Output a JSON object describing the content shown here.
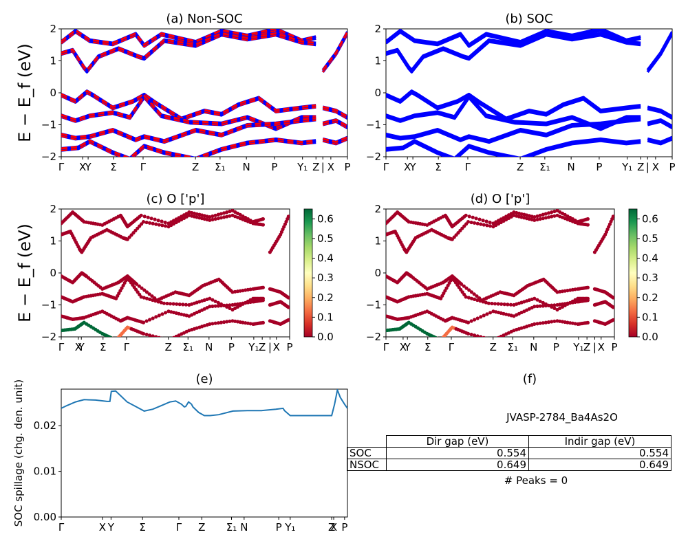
{
  "chart_data": [
    {
      "panel": "a",
      "type": "line",
      "title": "(a) Non-SOC",
      "ylabel": "E − E_f (eV)",
      "ylim": [
        -2,
        2
      ],
      "yticks": [
        "2",
        "1",
        "0",
        "−1",
        "−2"
      ],
      "xticks": [
        {
          "label": "Γ",
          "pos": 0
        },
        {
          "label": "X",
          "pos": 0.075
        },
        {
          "label": "Y",
          "pos": 0.094
        },
        {
          "label": "Σ",
          "pos": 0.183
        },
        {
          "label": "Γ",
          "pos": 0.286
        },
        {
          "label": "Z",
          "pos": 0.469
        },
        {
          "label": "Σ₁",
          "pos": 0.555
        },
        {
          "label": "N",
          "pos": 0.647
        },
        {
          "label": "P",
          "pos": 0.745
        },
        {
          "label": "Y₁",
          "pos": 0.843
        },
        {
          "label": "Z",
          "pos": 0.89
        },
        {
          "label": "|",
          "pos": 0.914
        },
        {
          "label": "X",
          "pos": 0.942
        },
        {
          "label": "P",
          "pos": 1.0
        }
      ],
      "series": [
        {
          "color": "#0000ff",
          "style": "solid"
        },
        {
          "color": "#ff0000",
          "style": "dashed"
        }
      ]
    },
    {
      "panel": "b",
      "type": "line",
      "title": "(b) SOC",
      "ylim": [
        -2,
        2
      ],
      "yticks": [
        "2",
        "1",
        "0",
        "−1",
        "−2"
      ],
      "xticks": [
        {
          "label": "Γ",
          "pos": 0
        },
        {
          "label": "X",
          "pos": 0.075
        },
        {
          "label": "Y",
          "pos": 0.094
        },
        {
          "label": "Σ",
          "pos": 0.183
        },
        {
          "label": "Γ",
          "pos": 0.286
        },
        {
          "label": "Z",
          "pos": 0.469
        },
        {
          "label": "Σ₁",
          "pos": 0.555
        },
        {
          "label": "N",
          "pos": 0.647
        },
        {
          "label": "P",
          "pos": 0.745
        },
        {
          "label": "Y₁",
          "pos": 0.843
        },
        {
          "label": "Z",
          "pos": 0.89
        },
        {
          "label": "|",
          "pos": 0.914
        },
        {
          "label": "X",
          "pos": 0.942
        },
        {
          "label": "P",
          "pos": 1.0
        }
      ],
      "series": [
        {
          "color": "#0000ff",
          "style": "solid"
        }
      ]
    },
    {
      "panel": "c",
      "type": "scatter",
      "title": "(c)  O ['p']",
      "ylabel": "E − E_f (eV)",
      "ylim": [
        -2,
        2
      ],
      "yticks": [
        "2",
        "1",
        "0",
        "−1",
        "−2"
      ],
      "colorbar": {
        "range": [
          0,
          0.65
        ],
        "ticks": [
          "0.6",
          "0.5",
          "0.4",
          "0.3",
          "0.2",
          "0.1",
          "0.0"
        ],
        "colormap": "RdYlGn"
      },
      "xticks": [
        {
          "label": "Γ",
          "pos": 0
        },
        {
          "label": "X",
          "pos": 0.075
        },
        {
          "label": "Y",
          "pos": 0.088
        },
        {
          "label": "Σ",
          "pos": 0.183
        },
        {
          "label": "Γ",
          "pos": 0.286
        },
        {
          "label": "Z",
          "pos": 0.469
        },
        {
          "label": "Σ₁",
          "pos": 0.555
        },
        {
          "label": "N",
          "pos": 0.647
        },
        {
          "label": "P",
          "pos": 0.745
        },
        {
          "label": "Y₁",
          "pos": 0.843
        },
        {
          "label": "Z",
          "pos": 0.88
        },
        {
          "label": "|",
          "pos": 0.914
        },
        {
          "label": "X",
          "pos": 0.942
        },
        {
          "label": "P",
          "pos": 1.0
        }
      ]
    },
    {
      "panel": "d",
      "type": "scatter",
      "title": "(d) O ['p']",
      "ylim": [
        -2,
        2
      ],
      "yticks": [
        "2",
        "1",
        "0",
        "−1",
        "−2"
      ],
      "colorbar": {
        "range": [
          0,
          0.65
        ],
        "ticks": [
          "0.6",
          "0.5",
          "0.4",
          "0.3",
          "0.2",
          "0.1",
          "0.0"
        ],
        "colormap": "RdYlGn"
      },
      "xticks": [
        {
          "label": "Γ",
          "pos": 0
        },
        {
          "label": "X",
          "pos": 0.075
        },
        {
          "label": "Y",
          "pos": 0.094
        },
        {
          "label": "Σ",
          "pos": 0.183
        },
        {
          "label": "Γ",
          "pos": 0.286
        },
        {
          "label": "Z",
          "pos": 0.469
        },
        {
          "label": "Σ₁",
          "pos": 0.555
        },
        {
          "label": "N",
          "pos": 0.647
        },
        {
          "label": "P",
          "pos": 0.745
        },
        {
          "label": "Y₁",
          "pos": 0.843
        },
        {
          "label": "Z",
          "pos": 0.88
        },
        {
          "label": "|",
          "pos": 0.914
        },
        {
          "label": "X",
          "pos": 0.942
        },
        {
          "label": "P",
          "pos": 1.0
        }
      ]
    },
    {
      "panel": "e",
      "type": "line",
      "title": "(e)",
      "ylabel": "SOC spillage (chg. den. unit)",
      "ylim": [
        0,
        0.028
      ],
      "yticks": [
        {
          "label": "0.02",
          "value": 0.02
        },
        {
          "label": "0.01",
          "value": 0.01
        },
        {
          "label": "0.00",
          "value": 0
        }
      ],
      "xticks": [
        {
          "label": "Γ",
          "pos": 0
        },
        {
          "label": "X",
          "pos": 0.144
        },
        {
          "label": "Y",
          "pos": 0.174
        },
        {
          "label": "Σ",
          "pos": 0.284
        },
        {
          "label": "Γ",
          "pos": 0.411
        },
        {
          "label": "Z",
          "pos": 0.491
        },
        {
          "label": "Σ₁",
          "pos": 0.595
        },
        {
          "label": "N",
          "pos": 0.639
        },
        {
          "label": "P",
          "pos": 0.76
        },
        {
          "label": "Y₁",
          "pos": 0.8
        },
        {
          "label": "Z",
          "pos": 0.945
        },
        {
          "label": "X",
          "pos": 0.952
        },
        {
          "label": "P",
          "pos": 0.99
        }
      ],
      "series": [
        {
          "color": "#1f77b4",
          "x": [
            0,
            0.02,
            0.05,
            0.08,
            0.12,
            0.16,
            0.17,
            0.175,
            0.19,
            0.21,
            0.23,
            0.26,
            0.29,
            0.32,
            0.35,
            0.38,
            0.4,
            0.42,
            0.43,
            0.435,
            0.445,
            0.455,
            0.46,
            0.48,
            0.5,
            0.52,
            0.55,
            0.6,
            0.65,
            0.7,
            0.75,
            0.775,
            0.78,
            0.8,
            0.85,
            0.9,
            0.945,
            0.955,
            0.965,
            0.975,
            0.99,
            1.0
          ],
          "y": [
            0.0238,
            0.0244,
            0.0252,
            0.0257,
            0.0256,
            0.0253,
            0.0253,
            0.0275,
            0.0276,
            0.0264,
            0.0252,
            0.0242,
            0.0232,
            0.0236,
            0.0244,
            0.0252,
            0.0254,
            0.0247,
            0.0241,
            0.0242,
            0.0252,
            0.0247,
            0.0241,
            0.0229,
            0.0222,
            0.0222,
            0.0224,
            0.0232,
            0.0233,
            0.0233,
            0.0236,
            0.0238,
            0.0233,
            0.0222,
            0.0222,
            0.0222,
            0.0222,
            0.0247,
            0.0278,
            0.0262,
            0.0247,
            0.0238
          ]
        }
      ]
    }
  ],
  "panel_f": {
    "title": "(f)",
    "jid": "JVASP-2784_Ba4As2O",
    "table": {
      "col_headers": [
        "Dir gap (eV)",
        "Indir gap (eV)"
      ],
      "rows": [
        {
          "label": "SOC",
          "dir": "0.554",
          "indir": "0.554"
        },
        {
          "label": "NSOC",
          "dir": "0.649",
          "indir": "0.649"
        }
      ]
    },
    "peaks": "# Peaks = 0"
  }
}
